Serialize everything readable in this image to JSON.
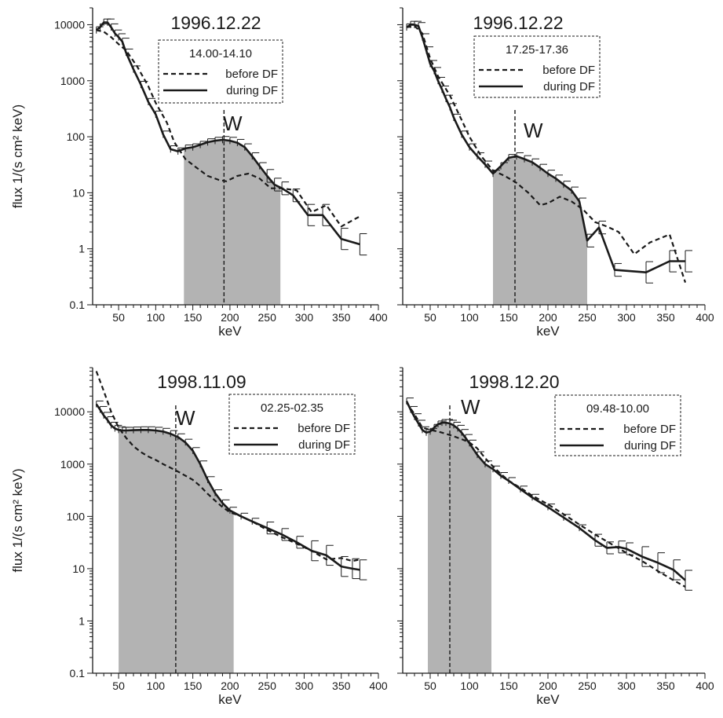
{
  "chart_data": [
    {
      "type": "line",
      "title": "1996.12.22",
      "interval": "14.00-14.10",
      "xlabel": "keV",
      "ylabel": "flux 1/(s cm² keV)",
      "y_scale": "log",
      "xlim": [
        15,
        400
      ],
      "ylim": [
        0.1,
        20000
      ],
      "xticks": [
        50,
        100,
        150,
        200,
        250,
        300,
        350,
        400
      ],
      "yticks": [
        0.1,
        1,
        10,
        100,
        1000,
        10000
      ],
      "ytick_labels": [
        "0.1",
        "1",
        "10",
        "100",
        "1000",
        "10000"
      ],
      "w_marker": 192,
      "w_label": "W",
      "shaded_region": [
        138,
        268
      ],
      "legend": {
        "before": "before DF",
        "during": "during DF"
      },
      "series": [
        {
          "name": "before DF",
          "style": "dashed",
          "x": [
            20,
            30,
            40,
            50,
            60,
            75,
            90,
            100,
            115,
            125,
            140,
            155,
            170,
            185,
            195,
            210,
            225,
            240,
            255,
            270,
            290,
            310,
            330,
            350,
            375
          ],
          "y": [
            8000,
            7500,
            6000,
            4500,
            3500,
            1800,
            800,
            400,
            180,
            80,
            40,
            28,
            20,
            17,
            16,
            20,
            22,
            18,
            12,
            12,
            11,
            4.5,
            6,
            2.5,
            3.8
          ]
        },
        {
          "name": "during DF",
          "style": "solid",
          "errorbars": true,
          "x": [
            20,
            25,
            30,
            35,
            40,
            45,
            50,
            55,
            60,
            70,
            80,
            90,
            100,
            110,
            120,
            130,
            140,
            150,
            160,
            170,
            180,
            190,
            200,
            210,
            220,
            230,
            240,
            250,
            260,
            270,
            285,
            305,
            325,
            350,
            375
          ],
          "y": [
            8000,
            9000,
            11000,
            11000,
            9000,
            7000,
            6000,
            5000,
            3200,
            1600,
            850,
            420,
            250,
            110,
            60,
            55,
            62,
            65,
            72,
            80,
            85,
            88,
            85,
            78,
            65,
            45,
            30,
            20,
            14,
            12,
            9,
            4,
            4,
            1.5,
            1.2
          ]
        }
      ]
    },
    {
      "type": "line",
      "title": "1996.12.22",
      "interval": "17.25-17.36",
      "xlabel": "keV",
      "y_scale": "log",
      "xlim": [
        15,
        400
      ],
      "ylim": [
        0.1,
        20000
      ],
      "xticks": [
        50,
        100,
        150,
        200,
        250,
        300,
        350,
        400
      ],
      "w_marker": 158,
      "w_label": "W",
      "shaded_region": [
        130,
        250
      ],
      "legend": {
        "before": "before DF",
        "during": "during DF"
      },
      "series": [
        {
          "name": "before DF",
          "style": "dashed",
          "x": [
            20,
            30,
            40,
            50,
            60,
            75,
            90,
            100,
            115,
            130,
            145,
            160,
            175,
            190,
            200,
            215,
            230,
            245,
            260,
            275,
            290,
            310,
            330,
            355,
            375
          ],
          "y": [
            9000,
            9500,
            7000,
            2500,
            1200,
            550,
            200,
            100,
            45,
            25,
            20,
            15,
            10,
            6,
            6.5,
            8.5,
            7,
            5,
            3,
            2.5,
            2,
            0.8,
            1.3,
            1.8,
            0.25
          ]
        },
        {
          "name": "during DF",
          "style": "solid",
          "errorbars": true,
          "x": [
            20,
            25,
            30,
            35,
            40,
            45,
            50,
            55,
            60,
            65,
            70,
            75,
            80,
            90,
            100,
            110,
            120,
            130,
            140,
            150,
            160,
            170,
            180,
            190,
            200,
            210,
            220,
            230,
            240,
            250,
            265,
            285,
            325,
            355,
            375
          ],
          "y": [
            9000,
            10000,
            10000,
            9500,
            6000,
            3500,
            2000,
            1500,
            1000,
            700,
            480,
            340,
            220,
            110,
            65,
            45,
            32,
            22,
            30,
            42,
            45,
            40,
            35,
            28,
            22,
            18,
            14,
            11,
            7,
            1.4,
            2.4,
            0.42,
            0.38,
            0.6,
            0.6
          ]
        }
      ]
    },
    {
      "type": "line",
      "title": "1998.11.09",
      "interval": "02.25-02.35",
      "xlabel": "keV",
      "ylabel": "flux 1/(s cm² keV)",
      "y_scale": "log",
      "xlim": [
        15,
        400
      ],
      "ylim": [
        0.1,
        70000
      ],
      "xticks": [
        50,
        100,
        150,
        200,
        250,
        300,
        350,
        400
      ],
      "yticks": [
        0.1,
        1,
        10,
        100,
        1000,
        10000
      ],
      "ytick_labels": [
        "0.1",
        "1",
        "10",
        "100",
        "1000",
        "10000"
      ],
      "w_marker": 127,
      "w_label": "W",
      "shaded_region": [
        50,
        205
      ],
      "legend": {
        "before": "before DF",
        "during": "during DF"
      },
      "series": [
        {
          "name": "before DF",
          "style": "dashed",
          "x": [
            20,
            30,
            40,
            50,
            60,
            70,
            80,
            90,
            100,
            110,
            120,
            130,
            140,
            150,
            160,
            170,
            180,
            190,
            200,
            215,
            230,
            250,
            270,
            290,
            310,
            330,
            350,
            365,
            375
          ],
          "y": [
            60000,
            25000,
            10000,
            5000,
            3200,
            2200,
            1700,
            1400,
            1200,
            1000,
            850,
            720,
            600,
            500,
            380,
            270,
            200,
            150,
            120,
            100,
            80,
            55,
            40,
            30,
            22,
            15,
            16,
            14,
            15
          ]
        },
        {
          "name": "during DF",
          "style": "solid",
          "errorbars": true,
          "x": [
            20,
            25,
            30,
            35,
            40,
            45,
            50,
            55,
            60,
            70,
            80,
            90,
            100,
            110,
            120,
            130,
            140,
            150,
            160,
            170,
            180,
            190,
            200,
            215,
            230,
            250,
            270,
            290,
            310,
            330,
            350,
            365,
            375
          ],
          "y": [
            14000,
            11000,
            8500,
            7000,
            5500,
            4800,
            4500,
            4400,
            4400,
            4450,
            4500,
            4500,
            4400,
            4200,
            3800,
            3300,
            2600,
            1800,
            1000,
            500,
            280,
            180,
            130,
            100,
            80,
            60,
            45,
            32,
            22,
            18,
            11,
            10,
            9.5
          ]
        }
      ]
    },
    {
      "type": "line",
      "title": "1998.12.20",
      "interval": "09.48-10.00",
      "xlabel": "keV",
      "y_scale": "log",
      "xlim": [
        15,
        400
      ],
      "ylim": [
        0.1,
        70000
      ],
      "xticks": [
        50,
        100,
        150,
        200,
        250,
        300,
        350,
        400
      ],
      "w_marker": 75,
      "w_label": "W",
      "shaded_region": [
        47,
        128
      ],
      "legend": {
        "before": "before DF",
        "during": "during DF"
      },
      "series": [
        {
          "name": "before DF",
          "style": "dashed",
          "x": [
            20,
            30,
            40,
            50,
            60,
            70,
            80,
            90,
            100,
            110,
            120,
            130,
            140,
            150,
            165,
            180,
            200,
            220,
            240,
            260,
            280,
            300,
            320,
            340,
            360,
            375
          ],
          "y": [
            15000,
            9000,
            5000,
            4500,
            4200,
            3800,
            3400,
            3000,
            2600,
            2000,
            1300,
            900,
            650,
            480,
            350,
            250,
            170,
            110,
            70,
            45,
            30,
            20,
            14,
            9,
            6,
            4.5
          ]
        },
        {
          "name": "during DF",
          "style": "solid",
          "errorbars": true,
          "x": [
            20,
            25,
            30,
            35,
            40,
            45,
            50,
            55,
            60,
            65,
            70,
            75,
            80,
            85,
            90,
            95,
            100,
            110,
            120,
            130,
            140,
            150,
            165,
            180,
            200,
            220,
            240,
            260,
            275,
            290,
            300,
            320,
            340,
            360,
            375
          ],
          "y": [
            16000,
            11000,
            8000,
            6000,
            4500,
            4000,
            4200,
            5000,
            5800,
            6200,
            6200,
            6000,
            5500,
            4800,
            4000,
            3200,
            2500,
            1500,
            1000,
            800,
            600,
            480,
            330,
            230,
            150,
            95,
            60,
            35,
            25,
            26,
            24,
            17,
            13,
            9.5,
            6
          ]
        }
      ]
    }
  ]
}
